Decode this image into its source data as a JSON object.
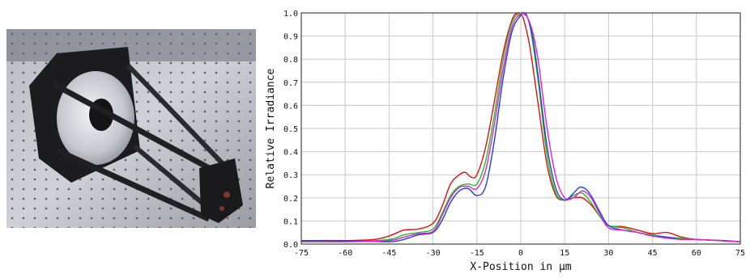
{
  "photo": {
    "description_icon": "optical-telescope-assembly-photo"
  },
  "chart_data": {
    "type": "line",
    "xlabel": "X-Position in µm",
    "ylabel": "Relative Irradiance",
    "xlim": [
      -75,
      75
    ],
    "ylim": [
      0,
      1.0
    ],
    "x_ticks": [
      -75,
      -60,
      -45,
      -30,
      -15,
      0,
      15,
      30,
      45,
      60,
      75
    ],
    "y_ticks": [
      0.0,
      0.1,
      0.2,
      0.3,
      0.4,
      0.5,
      0.6,
      0.7,
      0.8,
      0.9,
      1.0
    ],
    "y_tick_labels": [
      "0.0",
      "0.1",
      "0.2",
      "0.3",
      "0.4",
      "0.5",
      "0.6",
      "0.7",
      "0.8",
      "0.9",
      "1.0"
    ],
    "grid": true,
    "series": [
      {
        "color": "#e01010",
        "x": [
          -75,
          -60,
          -50,
          -45,
          -40,
          -35,
          -30,
          -27,
          -24,
          -21,
          -19,
          -17,
          -15,
          -12,
          -9,
          -6,
          -3,
          -1,
          0,
          1,
          3,
          6,
          9,
          12,
          15,
          18,
          21,
          24,
          27,
          30,
          35,
          40,
          45,
          50,
          55,
          60,
          70,
          75
        ],
        "y": [
          0.01,
          0.015,
          0.02,
          0.035,
          0.06,
          0.065,
          0.09,
          0.16,
          0.26,
          0.3,
          0.31,
          0.29,
          0.3,
          0.42,
          0.62,
          0.83,
          0.97,
          1.0,
          0.995,
          0.97,
          0.86,
          0.6,
          0.34,
          0.21,
          0.19,
          0.2,
          0.2,
          0.17,
          0.12,
          0.08,
          0.075,
          0.06,
          0.045,
          0.05,
          0.03,
          0.02,
          0.015,
          0.01
        ]
      },
      {
        "color": "#20c020",
        "x": [
          -75,
          -60,
          -45,
          -40,
          -35,
          -30,
          -27,
          -24,
          -21,
          -18,
          -15,
          -12,
          -9,
          -6,
          -3,
          0,
          1,
          3,
          6,
          9,
          12,
          15,
          18,
          21,
          24,
          27,
          30,
          35,
          40,
          45,
          50,
          55,
          60,
          75
        ],
        "y": [
          0.015,
          0.01,
          0.02,
          0.04,
          0.05,
          0.065,
          0.13,
          0.21,
          0.25,
          0.26,
          0.26,
          0.36,
          0.56,
          0.8,
          0.96,
          1.0,
          0.995,
          0.95,
          0.7,
          0.38,
          0.22,
          0.19,
          0.21,
          0.22,
          0.18,
          0.12,
          0.08,
          0.07,
          0.05,
          0.04,
          0.03,
          0.025,
          0.02,
          0.01
        ]
      },
      {
        "color": "#2040e0",
        "x": [
          -75,
          -60,
          -45,
          -40,
          -35,
          -30,
          -27,
          -24,
          -21,
          -18,
          -15,
          -12,
          -9,
          -6,
          -3,
          0,
          1,
          2,
          4,
          6,
          9,
          12,
          15,
          18,
          20,
          22,
          24,
          27,
          30,
          35,
          40,
          45,
          50,
          55,
          60,
          75
        ],
        "y": [
          0.015,
          0.015,
          0.01,
          0.02,
          0.04,
          0.05,
          0.1,
          0.18,
          0.23,
          0.24,
          0.21,
          0.25,
          0.45,
          0.72,
          0.92,
          0.99,
          1.0,
          0.99,
          0.9,
          0.72,
          0.42,
          0.24,
          0.19,
          0.22,
          0.245,
          0.24,
          0.21,
          0.14,
          0.08,
          0.06,
          0.05,
          0.035,
          0.03,
          0.02,
          0.02,
          0.01
        ]
      },
      {
        "color": "#e020e0",
        "x": [
          -75,
          -60,
          -45,
          -40,
          -35,
          -30,
          -27,
          -24,
          -21,
          -18,
          -15,
          -12,
          -9,
          -6,
          -3,
          0,
          2,
          4,
          6,
          9,
          12,
          15,
          18,
          21,
          24,
          27,
          30,
          35,
          40,
          45,
          50,
          55,
          60,
          75
        ],
        "y": [
          0.01,
          0.01,
          0.015,
          0.03,
          0.045,
          0.055,
          0.12,
          0.2,
          0.245,
          0.25,
          0.24,
          0.32,
          0.52,
          0.76,
          0.94,
          0.995,
          0.985,
          0.92,
          0.79,
          0.5,
          0.29,
          0.2,
          0.2,
          0.23,
          0.2,
          0.13,
          0.07,
          0.06,
          0.05,
          0.035,
          0.025,
          0.02,
          0.02,
          0.01
        ]
      }
    ]
  }
}
